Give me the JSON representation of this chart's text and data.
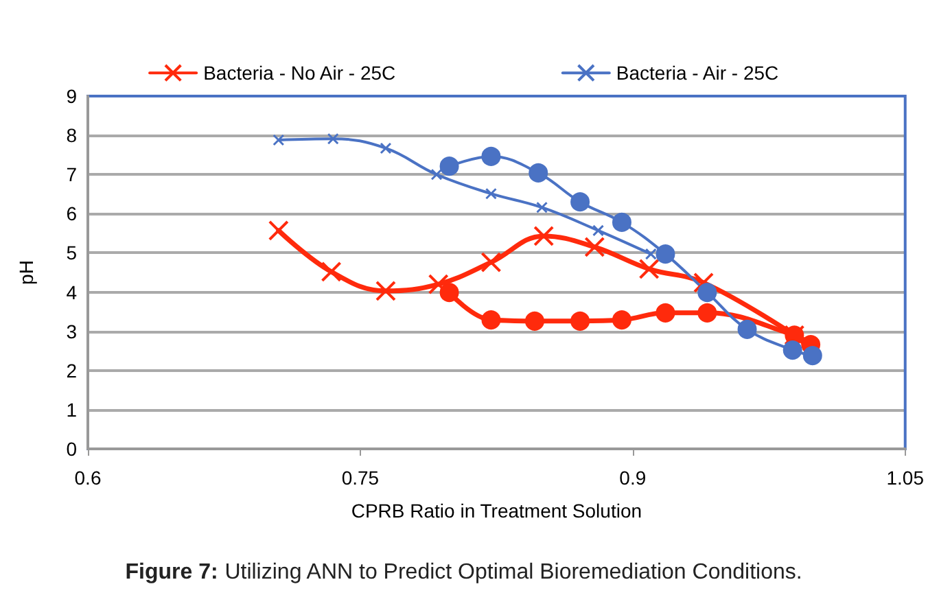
{
  "chart_data": {
    "type": "line",
    "title": "Figure 7: Utilizing ANN to Predict Optimal Bioremediation Conditions.",
    "xlabel": "CPRB Ratio in Treatment Solution",
    "ylabel": "pH",
    "xlim": [
      0.6,
      1.05
    ],
    "xticks": [
      0.6,
      0.75,
      0.9,
      1.05
    ],
    "ylim": [
      0,
      9
    ],
    "yticks": [
      0,
      1,
      2,
      3,
      4,
      5,
      6,
      7,
      8,
      9
    ],
    "grid": "y",
    "legend": "top",
    "series": [
      {
        "name": "Bacteria - No Air - 25C",
        "color": "#ff2a0c",
        "marker": "cross",
        "x": [
          0.705,
          0.734,
          0.764,
          0.793,
          0.822,
          0.851,
          0.879,
          0.909,
          0.939,
          0.989
        ],
        "values": [
          5.57,
          4.52,
          4.03,
          4.2,
          4.76,
          5.43,
          5.15,
          4.59,
          4.24,
          2.9
        ]
      },
      {
        "name": "Bacteria - Air - 25C",
        "color": "#4a72c4",
        "marker": "cross",
        "x": [
          0.705,
          0.735,
          0.764,
          0.792,
          0.822,
          0.85,
          0.881,
          0.91
        ],
        "values": [
          7.88,
          7.91,
          7.67,
          7.0,
          6.51,
          6.16,
          5.57,
          4.97
        ]
      },
      {
        "color": "#ff2a0c",
        "marker": "circle",
        "x": [
          0.799,
          0.822,
          0.846,
          0.871,
          0.894,
          0.918,
          0.941,
          0.989,
          0.998
        ],
        "values": [
          3.99,
          3.29,
          3.26,
          3.26,
          3.29,
          3.47,
          3.47,
          2.9,
          2.66
        ]
      },
      {
        "color": "#4a72c4",
        "marker": "circle",
        "x": [
          0.799,
          0.822,
          0.848,
          0.871,
          0.894,
          0.918,
          0.941,
          0.963,
          0.988,
          0.999
        ],
        "values": [
          7.21,
          7.46,
          7.04,
          6.3,
          5.78,
          4.97,
          3.99,
          3.05,
          2.52,
          2.38
        ]
      }
    ]
  }
}
